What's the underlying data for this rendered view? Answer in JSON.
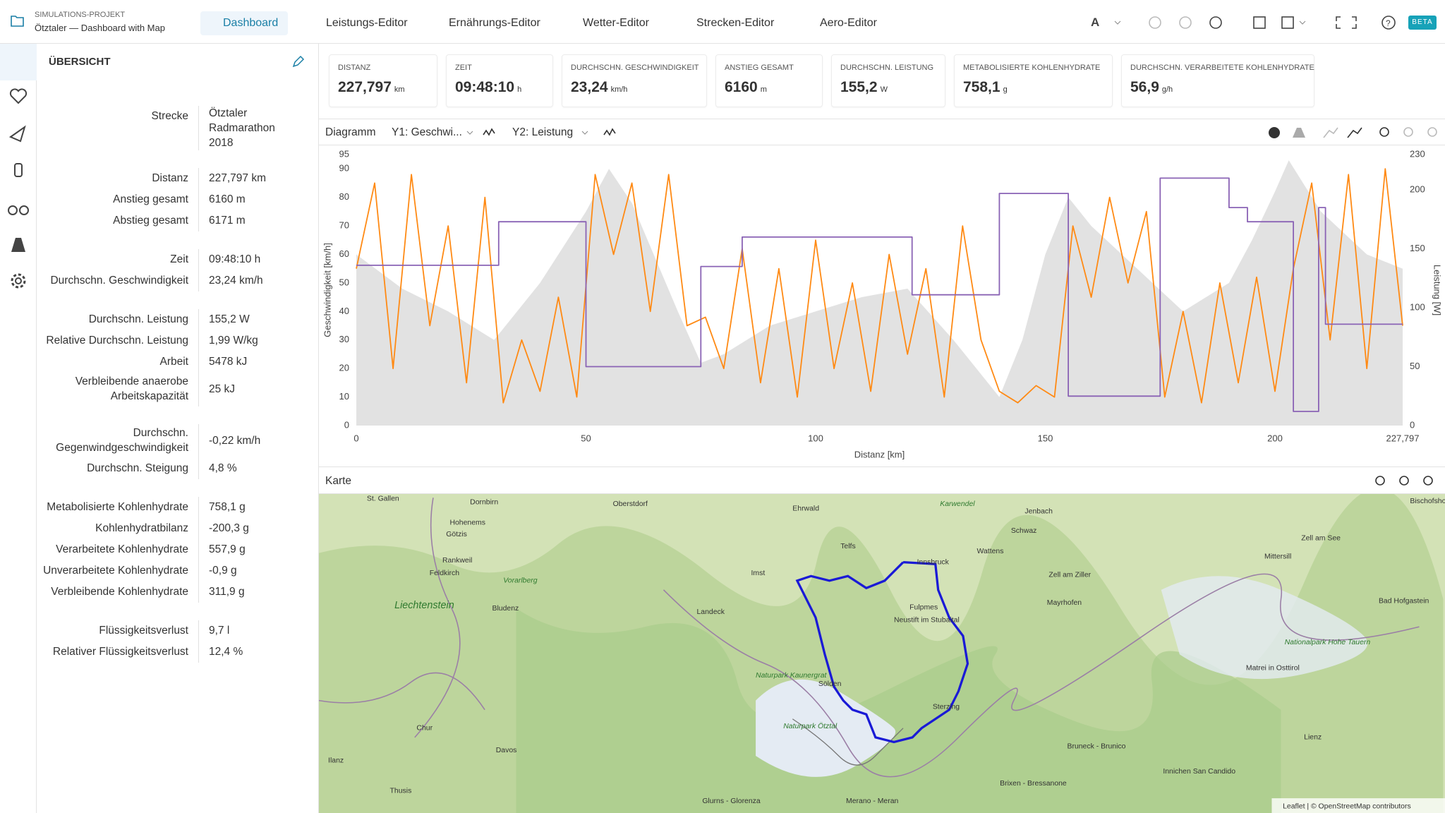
{
  "header": {
    "project_label": "SIMULATIONS-PROJEKT",
    "project_name": "Ötztaler — Dashboard with Map",
    "tabs": [
      "Dashboard",
      "Leistungs-Editor",
      "Ernährungs-Editor",
      "Wetter-Editor",
      "Strecken-Editor",
      "Aero-Editor"
    ],
    "badge": "BETA"
  },
  "sidebar": {
    "title": "ÜBERSICHT",
    "groups": [
      [
        {
          "label": "Strecke",
          "value": "Ötztaler Radmarathon 2018"
        }
      ],
      [
        {
          "label": "Distanz",
          "value": "227,797 km"
        },
        {
          "label": "Anstieg gesamt",
          "value": "6160 m"
        },
        {
          "label": "Abstieg gesamt",
          "value": "6171 m"
        }
      ],
      [
        {
          "label": "Zeit",
          "value": "09:48:10 h"
        },
        {
          "label": "Durchschn. Geschwindigkeit",
          "value": "23,24 km/h"
        }
      ],
      [
        {
          "label": "Durchschn. Leistung",
          "value": "155,2 W"
        },
        {
          "label": "Relative Durchschn. Leistung",
          "value": "1,99 W/kg"
        },
        {
          "label": "Arbeit",
          "value": "5478 kJ"
        },
        {
          "label": "Verbleibende anaerobe Arbeitskapazität",
          "value": "25 kJ"
        }
      ],
      [
        {
          "label": "Durchschn. Gegenwindgeschwindigkeit",
          "value": "-0,22 km/h"
        },
        {
          "label": "Durchschn. Steigung",
          "value": "4,8 %"
        }
      ],
      [
        {
          "label": "Metabolisierte Kohlenhydrate",
          "value": "758,1 g"
        },
        {
          "label": "Kohlenhydratbilanz",
          "value": "-200,3 g"
        },
        {
          "label": "Verarbeitete Kohlenhydrate",
          "value": "557,9 g"
        },
        {
          "label": "Unverarbeitete Kohlenhydrate",
          "value": "-0,9 g"
        },
        {
          "label": "Verbleibende Kohlenhydrate",
          "value": "311,9 g"
        }
      ],
      [
        {
          "label": "Flüssigkeitsverlust",
          "value": "9,7 l"
        },
        {
          "label": "Relativer Flüssigkeitsverlust",
          "value": "12,4 %"
        }
      ]
    ]
  },
  "kpis": [
    {
      "label": "DISTANZ",
      "value": "227,797",
      "unit": "km"
    },
    {
      "label": "ZEIT",
      "value": "09:48:10",
      "unit": "h"
    },
    {
      "label": "DURCHSCHN. GESCHWINDIGKEIT",
      "value": "23,24",
      "unit": "km/h"
    },
    {
      "label": "ANSTIEG GESAMT",
      "value": "6160",
      "unit": "m"
    },
    {
      "label": "DURCHSCHN. LEISTUNG",
      "value": "155,2",
      "unit": "W"
    },
    {
      "label": "METABOLISIERTE KOHLENHYDRATE",
      "value": "758,1",
      "unit": "g"
    },
    {
      "label": "DURCHSCHN. VERARBEITETE KOHLENHYDRATE",
      "value": "56,9",
      "unit": "g/h"
    }
  ],
  "chart_panel": {
    "title": "Diagramm",
    "y1_select": "Y1: Geschwi...",
    "y2_select": "Y2: Leistung"
  },
  "chart_data": {
    "type": "line",
    "x_label": "Distanz [km]",
    "y_label": "Geschwindigkeit [km/h]",
    "y2_label": "Leistung [W]",
    "xlim": [
      0,
      227.797
    ],
    "xticks": [
      0,
      50,
      100,
      150,
      200,
      {
        "value": 227.797,
        "label": "227,797"
      }
    ],
    "ylim": [
      0,
      95
    ],
    "yticks": [
      0,
      10,
      20,
      30,
      40,
      50,
      60,
      70,
      80,
      90,
      95
    ],
    "y2lim": [
      0,
      230
    ],
    "y2ticks": [
      0,
      50,
      100,
      150,
      200,
      230
    ],
    "grid": false,
    "series": [
      {
        "color": "#e2e2e2",
        "style": "area",
        "x": [
          0,
          10,
          20,
          30,
          40,
          50,
          55,
          60,
          70,
          75,
          80,
          90,
          100,
          110,
          120,
          130,
          140,
          145,
          150,
          155,
          160,
          170,
          180,
          190,
          195,
          200,
          203,
          210,
          220,
          227.797
        ],
        "values": [
          60,
          48,
          40,
          30,
          50,
          75,
          90,
          78,
          40,
          22,
          25,
          35,
          40,
          45,
          48,
          30,
          10,
          30,
          60,
          80,
          70,
          55,
          40,
          50,
          65,
          82,
          93,
          75,
          60,
          55
        ]
      },
      {
        "color": "#ff8a14",
        "style": "line",
        "x": [
          0,
          4,
          8,
          12,
          16,
          20,
          24,
          28,
          32,
          36,
          40,
          44,
          48,
          52,
          56,
          60,
          64,
          68,
          72,
          76,
          80,
          84,
          88,
          92,
          96,
          100,
          104,
          108,
          112,
          116,
          120,
          124,
          128,
          132,
          136,
          140,
          144,
          148,
          152,
          156,
          160,
          164,
          168,
          172,
          176,
          180,
          184,
          188,
          192,
          196,
          200,
          204,
          208,
          212,
          216,
          220,
          224,
          227.797
        ],
        "values": [
          55,
          85,
          20,
          88,
          35,
          70,
          15,
          80,
          8,
          30,
          12,
          45,
          10,
          88,
          60,
          85,
          40,
          88,
          35,
          38,
          20,
          62,
          15,
          55,
          10,
          65,
          20,
          50,
          12,
          60,
          25,
          55,
          10,
          70,
          30,
          12,
          8,
          14,
          10,
          70,
          45,
          80,
          50,
          75,
          10,
          40,
          8,
          50,
          15,
          52,
          12,
          55,
          85,
          30,
          88,
          20,
          90,
          35
        ]
      },
      {
        "color": "#8a63b5",
        "style": "line",
        "axis": "y2",
        "x": [
          0,
          31,
          31,
          50,
          50,
          75,
          75,
          84,
          84,
          121,
          121,
          140,
          140,
          155,
          155,
          175,
          175,
          190,
          190,
          194,
          194,
          204,
          204,
          209.5,
          209.5,
          211,
          211,
          227.797
        ],
        "values": [
          136,
          136,
          173,
          173,
          50,
          50,
          135,
          135,
          160,
          160,
          111,
          111,
          197,
          197,
          25,
          25,
          210,
          210,
          185,
          185,
          173,
          173,
          12,
          12,
          185,
          185,
          86,
          86
        ]
      }
    ]
  },
  "map": {
    "title": "Karte",
    "labels": [
      "St. Gallen",
      "Dornbirn",
      "Oberstdorf",
      "Ehrwald",
      "Karwendel",
      "Jenbach",
      "Hohenems",
      "Götzis",
      "Telfs",
      "Schwaz",
      "Wattens",
      "Innsbruck",
      "Imst",
      "Zell am Ziller",
      "Mittersill",
      "Zell am See",
      "Rankweil",
      "Feldkirch",
      "Vorarlberg",
      "Liechtenstein",
      "Bludenz",
      "Landeck",
      "Fulpmes",
      "Neustift im Stubaital",
      "Mayrhofen",
      "Bad Hofgastein",
      "Sölden",
      "Naturpark Kaunergrat",
      "Naturpark Ötztal",
      "Sterzing",
      "Nationalpark Hohe Tauern",
      "Matrei in Osttirol",
      "Chur",
      "Davos",
      "Lienz",
      "Bruneck - Brunico",
      "Ilanz",
      "Thusis",
      "Glurns - Glorenza",
      "Merano - Meran",
      "Brixen - Bressanone",
      "Innichen San Candido",
      "Bischofshofen"
    ],
    "attribution": "Leaflet | © OpenStreetMap contributors"
  }
}
